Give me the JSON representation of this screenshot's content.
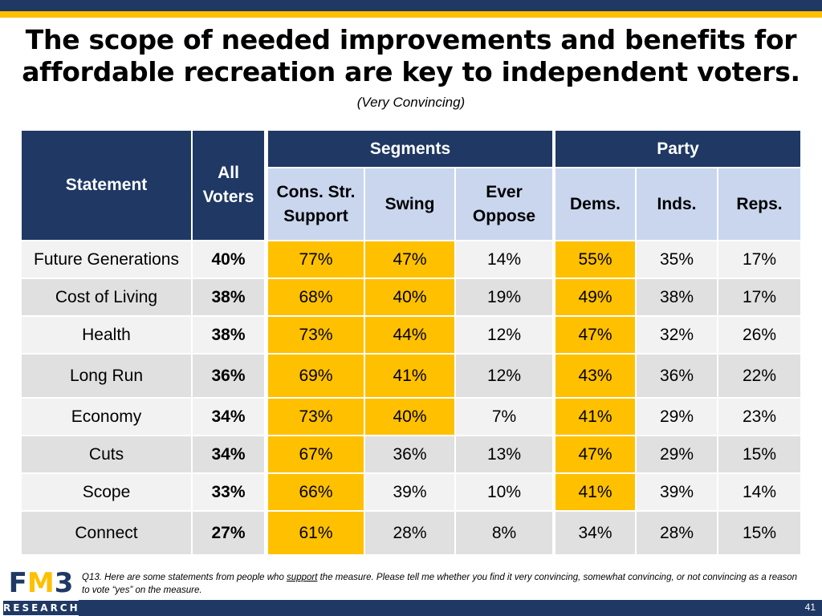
{
  "title_line1": "The scope of needed improvements and benefits for",
  "title_line2": "affordable recreation are key to independent voters.",
  "subtitle": "(Very Convincing)",
  "colors": {
    "navy": "#1f3864",
    "gold": "#ffc000",
    "light_blue": "#c9d6ee"
  },
  "chart_data": {
    "type": "table",
    "title": "The scope of needed improvements and benefits for affordable recreation are key to independent voters.",
    "subtitle": "(Very Convincing)",
    "header_groups": [
      "Segments",
      "Party"
    ],
    "columns": [
      "Statement",
      "All Voters",
      "Cons. Str. Support",
      "Swing",
      "Ever Oppose",
      "Dems.",
      "Inds.",
      "Reps."
    ],
    "column_labels": {
      "statement": "Statement",
      "all_l1": "All",
      "all_l2": "Voters",
      "cons_l1": "Cons. Str.",
      "cons_l2": "Support",
      "swing": "Swing",
      "ever_l1": "Ever",
      "ever_l2": "Oppose",
      "dems": "Dems.",
      "inds": "Inds.",
      "reps": "Reps."
    },
    "rows": [
      {
        "statement": "Future Generations",
        "values": [
          "40%",
          "77%",
          "47%",
          "14%",
          "55%",
          "35%",
          "17%"
        ],
        "highlight": [
          false,
          true,
          true,
          false,
          true,
          false,
          false
        ]
      },
      {
        "statement": "Cost of Living",
        "values": [
          "38%",
          "68%",
          "40%",
          "19%",
          "49%",
          "38%",
          "17%"
        ],
        "highlight": [
          false,
          true,
          true,
          false,
          true,
          false,
          false
        ]
      },
      {
        "statement": "Health",
        "values": [
          "38%",
          "73%",
          "44%",
          "12%",
          "47%",
          "32%",
          "26%"
        ],
        "highlight": [
          false,
          true,
          true,
          false,
          true,
          false,
          false
        ]
      },
      {
        "statement": "Long Run",
        "values": [
          "36%",
          "69%",
          "41%",
          "12%",
          "43%",
          "36%",
          "22%"
        ],
        "highlight": [
          false,
          true,
          true,
          false,
          true,
          false,
          false
        ]
      },
      {
        "statement": "Economy",
        "values": [
          "34%",
          "73%",
          "40%",
          "7%",
          "41%",
          "29%",
          "23%"
        ],
        "highlight": [
          false,
          true,
          true,
          false,
          true,
          false,
          false
        ]
      },
      {
        "statement": "Cuts",
        "values": [
          "34%",
          "67%",
          "36%",
          "13%",
          "47%",
          "29%",
          "15%"
        ],
        "highlight": [
          false,
          true,
          false,
          false,
          true,
          false,
          false
        ]
      },
      {
        "statement": "Scope",
        "values": [
          "33%",
          "66%",
          "39%",
          "10%",
          "41%",
          "39%",
          "14%"
        ],
        "highlight": [
          false,
          true,
          false,
          false,
          true,
          false,
          false
        ]
      },
      {
        "statement": "Connect",
        "values": [
          "27%",
          "61%",
          "28%",
          "8%",
          "34%",
          "28%",
          "15%"
        ],
        "highlight": [
          false,
          true,
          false,
          false,
          false,
          false,
          false
        ]
      }
    ]
  },
  "footnote": {
    "part1": "Q13. Here are some statements from people who ",
    "underlined": "support",
    "part2": " the measure. Please tell me whether you find it very convincing, somewhat convincing, or not convincing as a reason to vote “yes” on the measure."
  },
  "logo": {
    "letter1": "F",
    "letter2": "M",
    "letter3": "3",
    "research": "RESEARCH"
  },
  "page_number": "41"
}
